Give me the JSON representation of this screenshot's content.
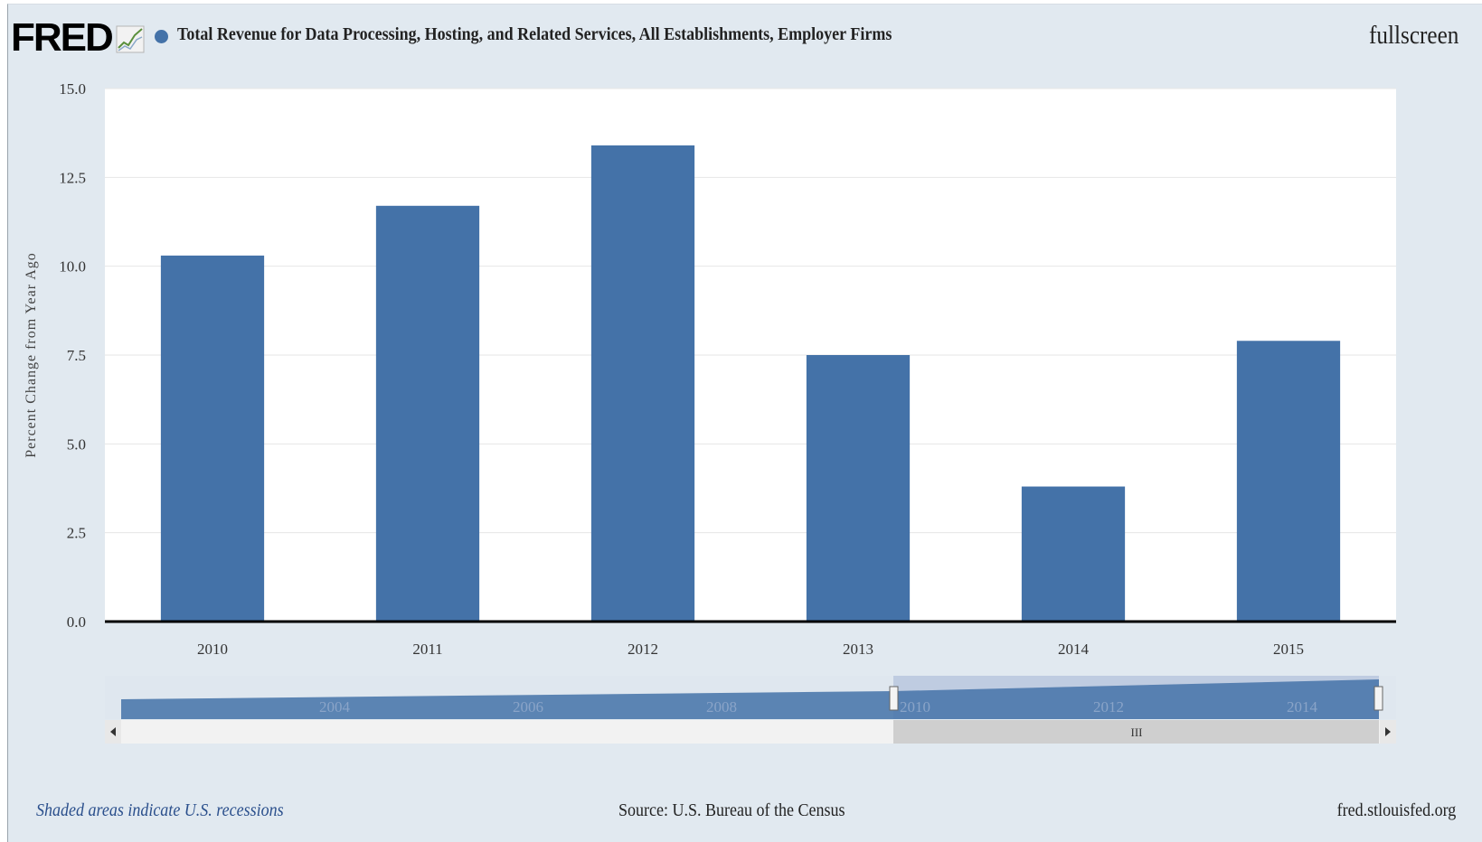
{
  "header": {
    "logo_text": "FRED",
    "title": "Total Revenue for Data Processing, Hosting, and Related Services, All Establishments, Employer Firms",
    "fullscreen_label": "fullscreen",
    "logo_icon": "line-graph-icon",
    "series_color": "#4472a8"
  },
  "chart_data": {
    "type": "bar",
    "title": "Total Revenue for Data Processing, Hosting, and Related Services, All Establishments, Employer Firms",
    "ylabel": "Percent Change from Year Ago",
    "xlabel": "",
    "categories": [
      "2010",
      "2011",
      "2012",
      "2013",
      "2014",
      "2015"
    ],
    "values": [
      10.3,
      11.7,
      13.4,
      7.5,
      3.8,
      7.9
    ],
    "ylim": [
      0,
      15
    ],
    "yticks": [
      "0.0",
      "2.5",
      "5.0",
      "7.5",
      "10.0",
      "12.5",
      "15.0"
    ],
    "grid": true,
    "bar_color": "#4472a8",
    "navigator": {
      "tick_labels": [
        "2004",
        "2006",
        "2008",
        "2010",
        "2012",
        "2014"
      ],
      "selected_range": [
        "2010",
        "2015"
      ],
      "scrollbar_grip": "III",
      "left_arrow_icon": "arrow-left-icon",
      "right_arrow_icon": "arrow-right-icon"
    }
  },
  "footer": {
    "recession_note": "Shaded areas indicate U.S. recessions",
    "source": "Source: U.S. Bureau of the Census",
    "site": "fred.stlouisfed.org"
  }
}
